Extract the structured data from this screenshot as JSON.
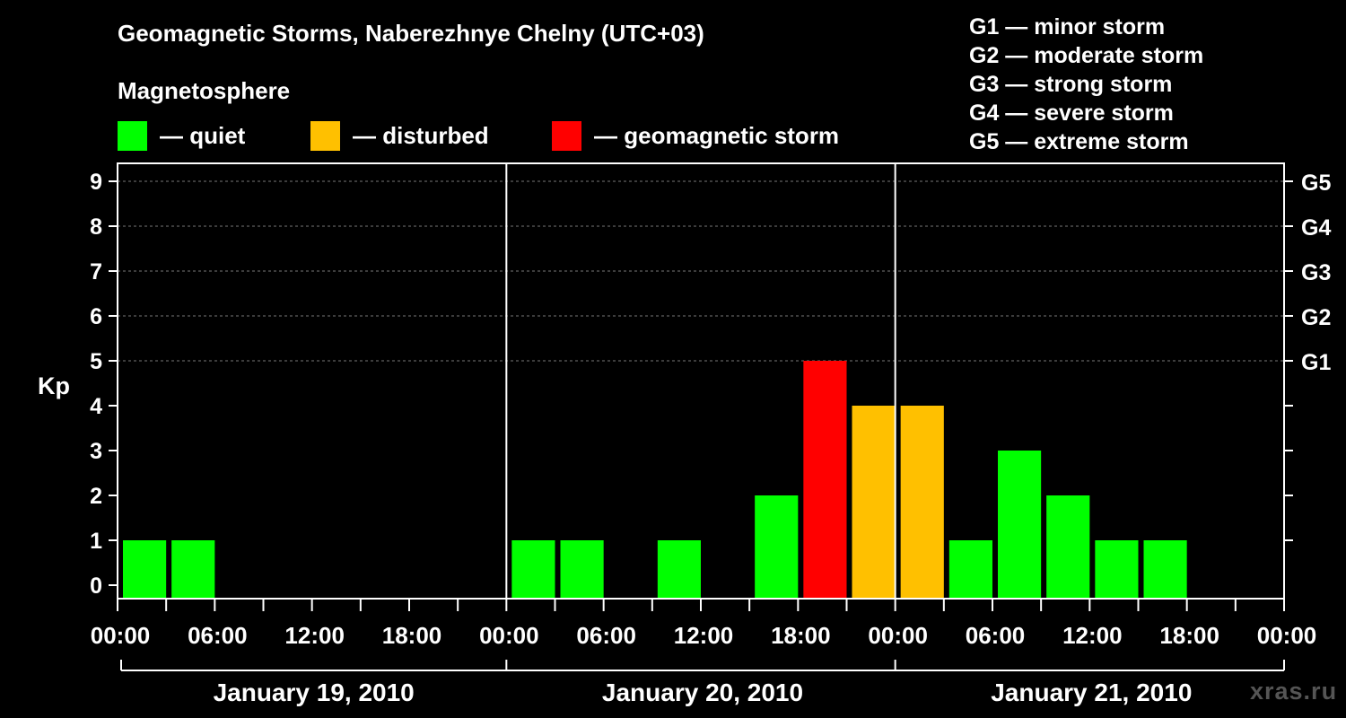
{
  "title": "Geomagnetic Storms, Naberezhnye Chelny (UTC+03)",
  "subtitle": "Magnetosphere",
  "legend": [
    {
      "label": "— quiet",
      "color": "#00ff00"
    },
    {
      "label": "— disturbed",
      "color": "#ffc000"
    },
    {
      "label": "— geomagnetic storm",
      "color": "#ff0000"
    }
  ],
  "g_levels": [
    "G1 — minor storm",
    "G2 — moderate storm",
    "G3 — strong storm",
    "G4 — severe storm",
    "G5 — extreme storm"
  ],
  "watermark": "xras.ru",
  "chart_data": {
    "type": "bar",
    "ylabel": "Kp",
    "ylim": [
      0,
      9
    ],
    "y_ticks": [
      0,
      1,
      2,
      3,
      4,
      5,
      6,
      7,
      8,
      9
    ],
    "right_ticks": [
      {
        "value": 5,
        "label": "G1"
      },
      {
        "value": 6,
        "label": "G2"
      },
      {
        "value": 7,
        "label": "G3"
      },
      {
        "value": 8,
        "label": "G4"
      },
      {
        "value": 9,
        "label": "G5"
      }
    ],
    "x_tick_labels": [
      "00:00",
      "06:00",
      "12:00",
      "18:00",
      "00:00",
      "06:00",
      "12:00",
      "18:00",
      "00:00",
      "06:00",
      "12:00",
      "18:00",
      "00:00"
    ],
    "days": [
      "January 19, 2010",
      "January 20, 2010",
      "January 21, 2010"
    ],
    "grid": "dashed horizontal lines at 5-9",
    "intervals_per_day": 8,
    "bars": [
      {
        "day": 0,
        "interval": 0,
        "kp": 1,
        "status": "quiet"
      },
      {
        "day": 0,
        "interval": 1,
        "kp": 1,
        "status": "quiet"
      },
      {
        "day": 1,
        "interval": 0,
        "kp": 1,
        "status": "quiet"
      },
      {
        "day": 1,
        "interval": 1,
        "kp": 1,
        "status": "quiet"
      },
      {
        "day": 1,
        "interval": 3,
        "kp": 1,
        "status": "quiet"
      },
      {
        "day": 1,
        "interval": 5,
        "kp": 2,
        "status": "quiet"
      },
      {
        "day": 1,
        "interval": 6,
        "kp": 5,
        "status": "storm"
      },
      {
        "day": 1,
        "interval": 7,
        "kp": 4,
        "status": "disturbed"
      },
      {
        "day": 2,
        "interval": 0,
        "kp": 4,
        "status": "disturbed"
      },
      {
        "day": 2,
        "interval": 1,
        "kp": 1,
        "status": "quiet"
      },
      {
        "day": 2,
        "interval": 2,
        "kp": 3,
        "status": "quiet"
      },
      {
        "day": 2,
        "interval": 3,
        "kp": 2,
        "status": "quiet"
      },
      {
        "day": 2,
        "interval": 4,
        "kp": 1,
        "status": "quiet"
      },
      {
        "day": 2,
        "interval": 5,
        "kp": 1,
        "status": "quiet"
      }
    ],
    "status_colors": {
      "quiet": "#00ff00",
      "disturbed": "#ffc000",
      "storm": "#ff0000"
    }
  }
}
